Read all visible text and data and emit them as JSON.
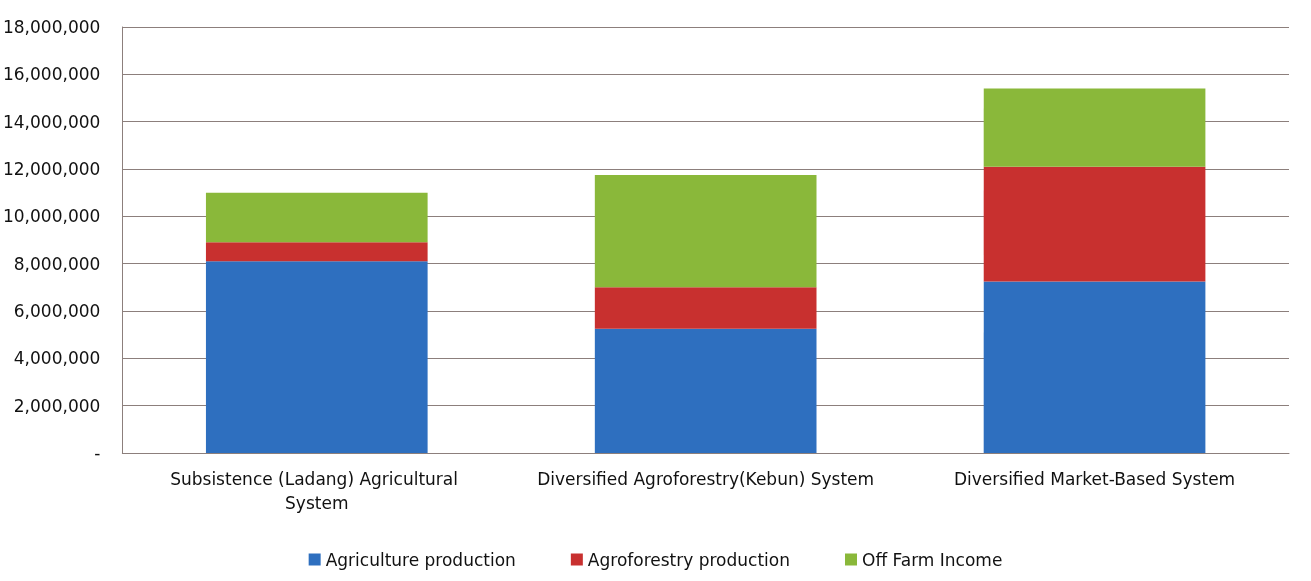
{
  "chart_data": {
    "type": "bar",
    "stacked": true,
    "categories": [
      "Subsistence (Ladang) Agricultural System",
      "Diversified Agroforestry(Kebun) System",
      "Diversified Market-Based System"
    ],
    "series": [
      {
        "name": "Agriculture production",
        "color": "#2e6fbf",
        "values": [
          8100000,
          5250000,
          7250000
        ]
      },
      {
        "name": "Agroforestry production",
        "color": "#c8302f",
        "values": [
          800000,
          1750000,
          4850000
        ]
      },
      {
        "name": "Off Farm Income",
        "color": "#8ab83a",
        "values": [
          2100000,
          4750000,
          3300000
        ]
      }
    ],
    "ylim": [
      0,
      18000000
    ],
    "yticks": [
      {
        "value": 0,
        "label": "-"
      },
      {
        "value": 2000000,
        "label": "2,000,000"
      },
      {
        "value": 4000000,
        "label": "4,000,000"
      },
      {
        "value": 6000000,
        "label": "6,000,000"
      },
      {
        "value": 8000000,
        "label": "8,000,000"
      },
      {
        "value": 10000000,
        "label": "10,000,000"
      },
      {
        "value": 12000000,
        "label": "12,000,000"
      },
      {
        "value": 14000000,
        "label": "14,000,000"
      },
      {
        "value": 16000000,
        "label": "16,000,000"
      },
      {
        "value": 18000000,
        "label": "18,000,000"
      }
    ],
    "grid": "y",
    "legend": "bottom"
  }
}
